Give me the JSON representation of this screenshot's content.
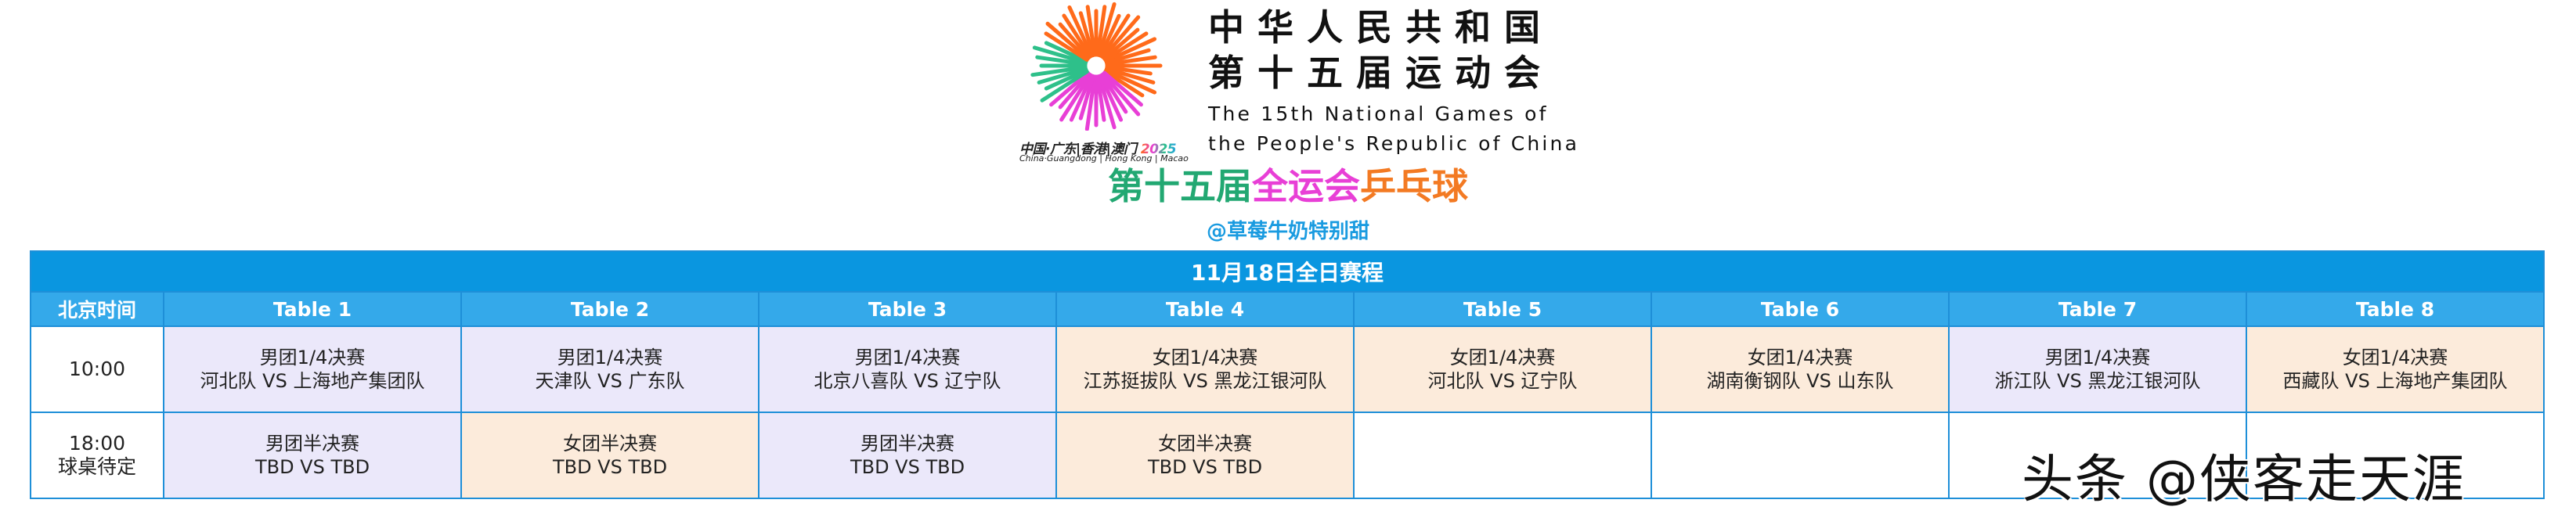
{
  "logo": {
    "caption_cn": "中国·广东|香港|澳门",
    "caption_year": "2025",
    "caption_en": "China·Guangdong | Hong Kong | Macao",
    "colors": [
      "#ff6a1a",
      "#2ec08a",
      "#e83fd6"
    ]
  },
  "header": {
    "cn_line1": "中华人民共和国",
    "cn_line2": "第十五届运动会",
    "en_line1": "The 15th National Games of",
    "en_line2": "the People's Republic of China",
    "title_part1": "第十五届",
    "title_part2": "全运会",
    "title_part3": "乒乓球",
    "title_colors": [
      "#22a872",
      "#e83fd6",
      "#f37a23"
    ],
    "handle": "@草莓牛奶特别甜"
  },
  "schedule": {
    "title": "11月18日全日赛程",
    "time_header": "北京时间",
    "tables": [
      "Table 1",
      "Table 2",
      "Table 3",
      "Table 4",
      "Table 5",
      "Table 6",
      "Table 7",
      "Table 8"
    ],
    "rows": [
      {
        "time": "10:00",
        "time_note": "",
        "cells": [
          {
            "type": "men",
            "event": "男团1/4决赛",
            "match": "河北队 VS 上海地产集团队"
          },
          {
            "type": "men",
            "event": "男团1/4决赛",
            "match": "天津队 VS 广东队"
          },
          {
            "type": "men",
            "event": "男团1/4决赛",
            "match": "北京八喜队 VS 辽宁队"
          },
          {
            "type": "women",
            "event": "女团1/4决赛",
            "match": "江苏挺拔队 VS 黑龙江银河队"
          },
          {
            "type": "women",
            "event": "女团1/4决赛",
            "match": "河北队 VS 辽宁队"
          },
          {
            "type": "women",
            "event": "女团1/4决赛",
            "match": "湖南衡钢队 VS 山东队"
          },
          {
            "type": "men",
            "event": "男团1/4决赛",
            "match": "浙江队 VS 黑龙江银河队"
          },
          {
            "type": "women",
            "event": "女团1/4决赛",
            "match": "西藏队 VS 上海地产集团队"
          }
        ]
      },
      {
        "time": "18:00",
        "time_note": "球桌待定",
        "cells": [
          {
            "type": "men",
            "event": "男团半决赛",
            "match": "TBD VS TBD"
          },
          {
            "type": "women",
            "event": "女团半决赛",
            "match": "TBD VS TBD"
          },
          {
            "type": "men",
            "event": "男团半决赛",
            "match": "TBD VS TBD"
          },
          {
            "type": "women",
            "event": "女团半决赛",
            "match": "TBD VS TBD"
          },
          {
            "type": "empty",
            "event": "",
            "match": ""
          },
          {
            "type": "empty",
            "event": "",
            "match": ""
          },
          {
            "type": "empty",
            "event": "",
            "match": ""
          },
          {
            "type": "empty",
            "event": "",
            "match": ""
          }
        ]
      }
    ],
    "colors": {
      "band": "#0a96e0",
      "header": "#34a9ea",
      "men": "#ebe8fa",
      "women": "#fcebdb",
      "border": "#1e8fd8"
    }
  },
  "watermark": "头条 @侠客走天涯"
}
